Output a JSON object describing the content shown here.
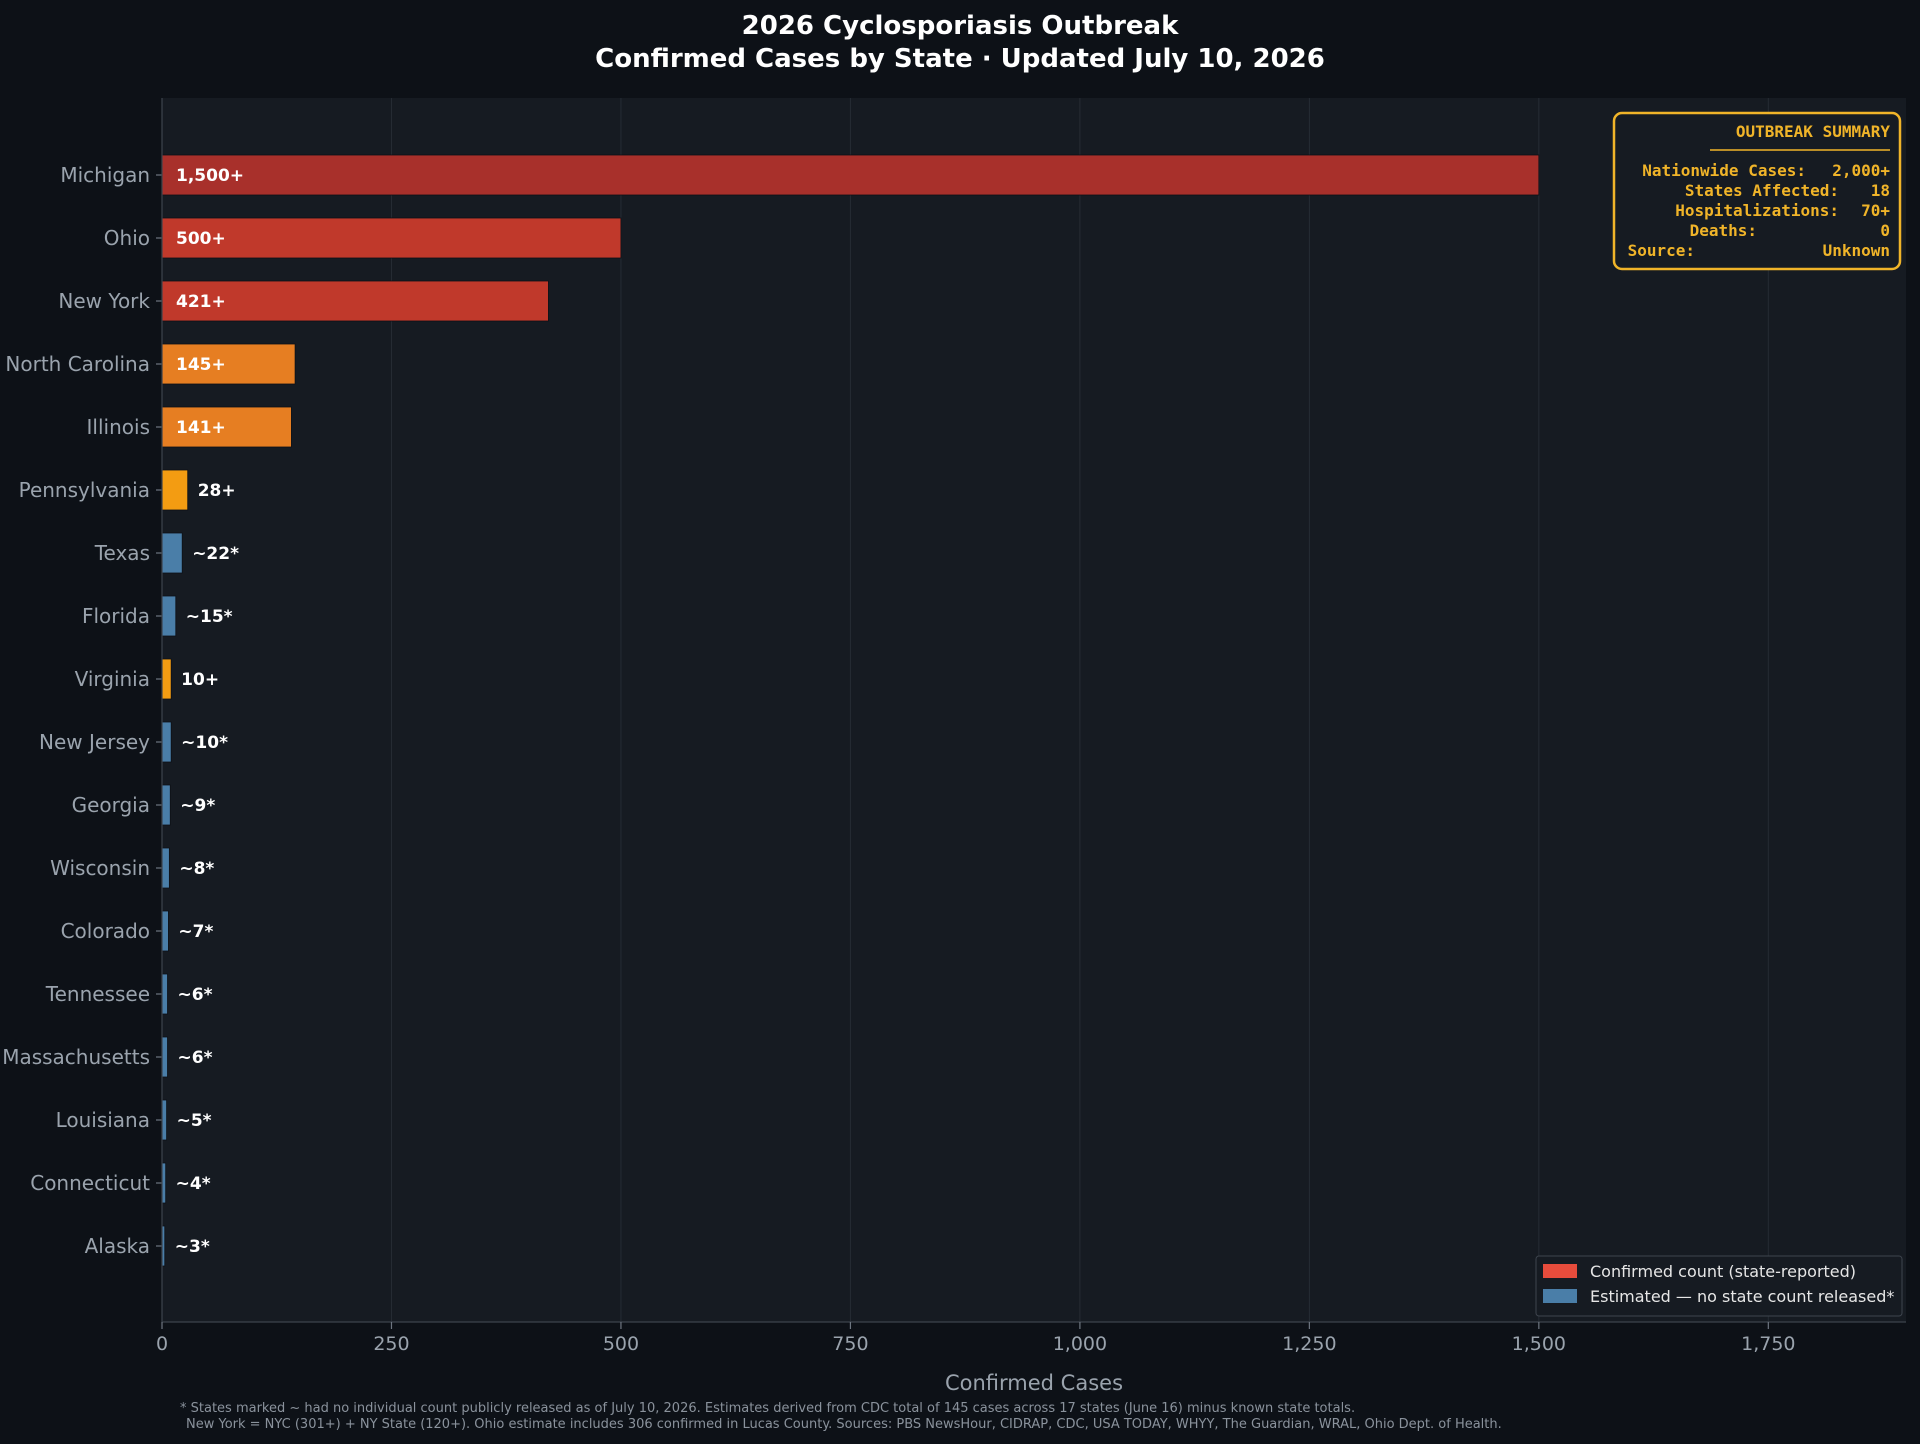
{
  "chart_data": {
    "type": "bar",
    "orientation": "horizontal",
    "title": [
      "2026 Cyclosporiasis Outbreak",
      "Confirmed Cases by State  ·  Updated July 10, 2026"
    ],
    "xlabel": "Confirmed Cases",
    "xlim": [
      0,
      1900
    ],
    "xticks": [
      0,
      250,
      500,
      750,
      1000,
      1250,
      1500,
      1750
    ],
    "xtick_labels": [
      "0",
      "250",
      "500",
      "750",
      "1,000",
      "1,250",
      "1,500",
      "1,750"
    ],
    "grid": "vertical",
    "bars": [
      {
        "state": "Michigan",
        "value": 1500,
        "label": "1,500+",
        "kind": "confirmed",
        "color": "#a8302b"
      },
      {
        "state": "Ohio",
        "value": 500,
        "label": "500+",
        "kind": "confirmed",
        "color": "#c0392b"
      },
      {
        "state": "New York",
        "value": 421,
        "label": "421+",
        "kind": "confirmed",
        "color": "#c0392b"
      },
      {
        "state": "North Carolina",
        "value": 145,
        "label": "145+",
        "kind": "confirmed",
        "color": "#e67e22"
      },
      {
        "state": "Illinois",
        "value": 141,
        "label": "141+",
        "kind": "confirmed",
        "color": "#e67e22"
      },
      {
        "state": "Pennsylvania",
        "value": 28,
        "label": "28+",
        "kind": "confirmed",
        "color": "#f39c12"
      },
      {
        "state": "Texas",
        "value": 22,
        "label": "~22*",
        "kind": "estimated",
        "color": "#4a7ea8"
      },
      {
        "state": "Florida",
        "value": 15,
        "label": "~15*",
        "kind": "estimated",
        "color": "#4a7ea8"
      },
      {
        "state": "Virginia",
        "value": 10,
        "label": "10+",
        "kind": "confirmed",
        "color": "#f39c12"
      },
      {
        "state": "New Jersey",
        "value": 10,
        "label": "~10*",
        "kind": "estimated",
        "color": "#4a7ea8"
      },
      {
        "state": "Georgia",
        "value": 9,
        "label": "~9*",
        "kind": "estimated",
        "color": "#4a7ea8"
      },
      {
        "state": "Wisconsin",
        "value": 8,
        "label": "~8*",
        "kind": "estimated",
        "color": "#4a7ea8"
      },
      {
        "state": "Colorado",
        "value": 7,
        "label": "~7*",
        "kind": "estimated",
        "color": "#4a7ea8"
      },
      {
        "state": "Tennessee",
        "value": 6,
        "label": "~6*",
        "kind": "estimated",
        "color": "#4a7ea8"
      },
      {
        "state": "Massachusetts",
        "value": 6,
        "label": "~6*",
        "kind": "estimated",
        "color": "#4a7ea8"
      },
      {
        "state": "Louisiana",
        "value": 5,
        "label": "~5*",
        "kind": "estimated",
        "color": "#4a7ea8"
      },
      {
        "state": "Connecticut",
        "value": 4,
        "label": "~4*",
        "kind": "estimated",
        "color": "#4a7ea8"
      },
      {
        "state": "Alaska",
        "value": 3,
        "label": "~3*",
        "kind": "estimated",
        "color": "#4a7ea8"
      }
    ],
    "legend": {
      "placement": "bottom-right",
      "entries": [
        {
          "label": "Confirmed count (state-reported)",
          "color": "#e74c3c"
        },
        {
          "label": "Estimated — no state count released*",
          "color": "#4a7ea8"
        }
      ]
    },
    "summary_box": {
      "placement": "top-right",
      "title": "OUTBREAK SUMMARY",
      "rows": [
        {
          "label": "Nationwide Cases:",
          "value": "2,000+"
        },
        {
          "label": "States Affected:",
          "value": "18"
        },
        {
          "label": "Hospitalizations:",
          "value": "70+"
        },
        {
          "label": "Deaths:",
          "value": "0"
        },
        {
          "label": "Source:",
          "value": "Unknown"
        }
      ]
    },
    "footnote": [
      "* States marked ~ had no individual count publicly released as of July 10, 2026. Estimates derived from CDC total of 145 cases across 17 states (June 16) minus known state totals.",
      "New York = NYC (301+) + NY State (120+). Ohio estimate includes 306 confirmed in Lucas County. Sources: PBS NewsHour, CIDRAP, CDC, USA TODAY, WHYY, The Guardian, WRAL, Ohio Dept. of Health."
    ]
  },
  "colors": {
    "background": "#0d1117",
    "plot_background": "#161b22",
    "summary_accent": "#f0b429",
    "text_muted": "#9aa3ad"
  }
}
